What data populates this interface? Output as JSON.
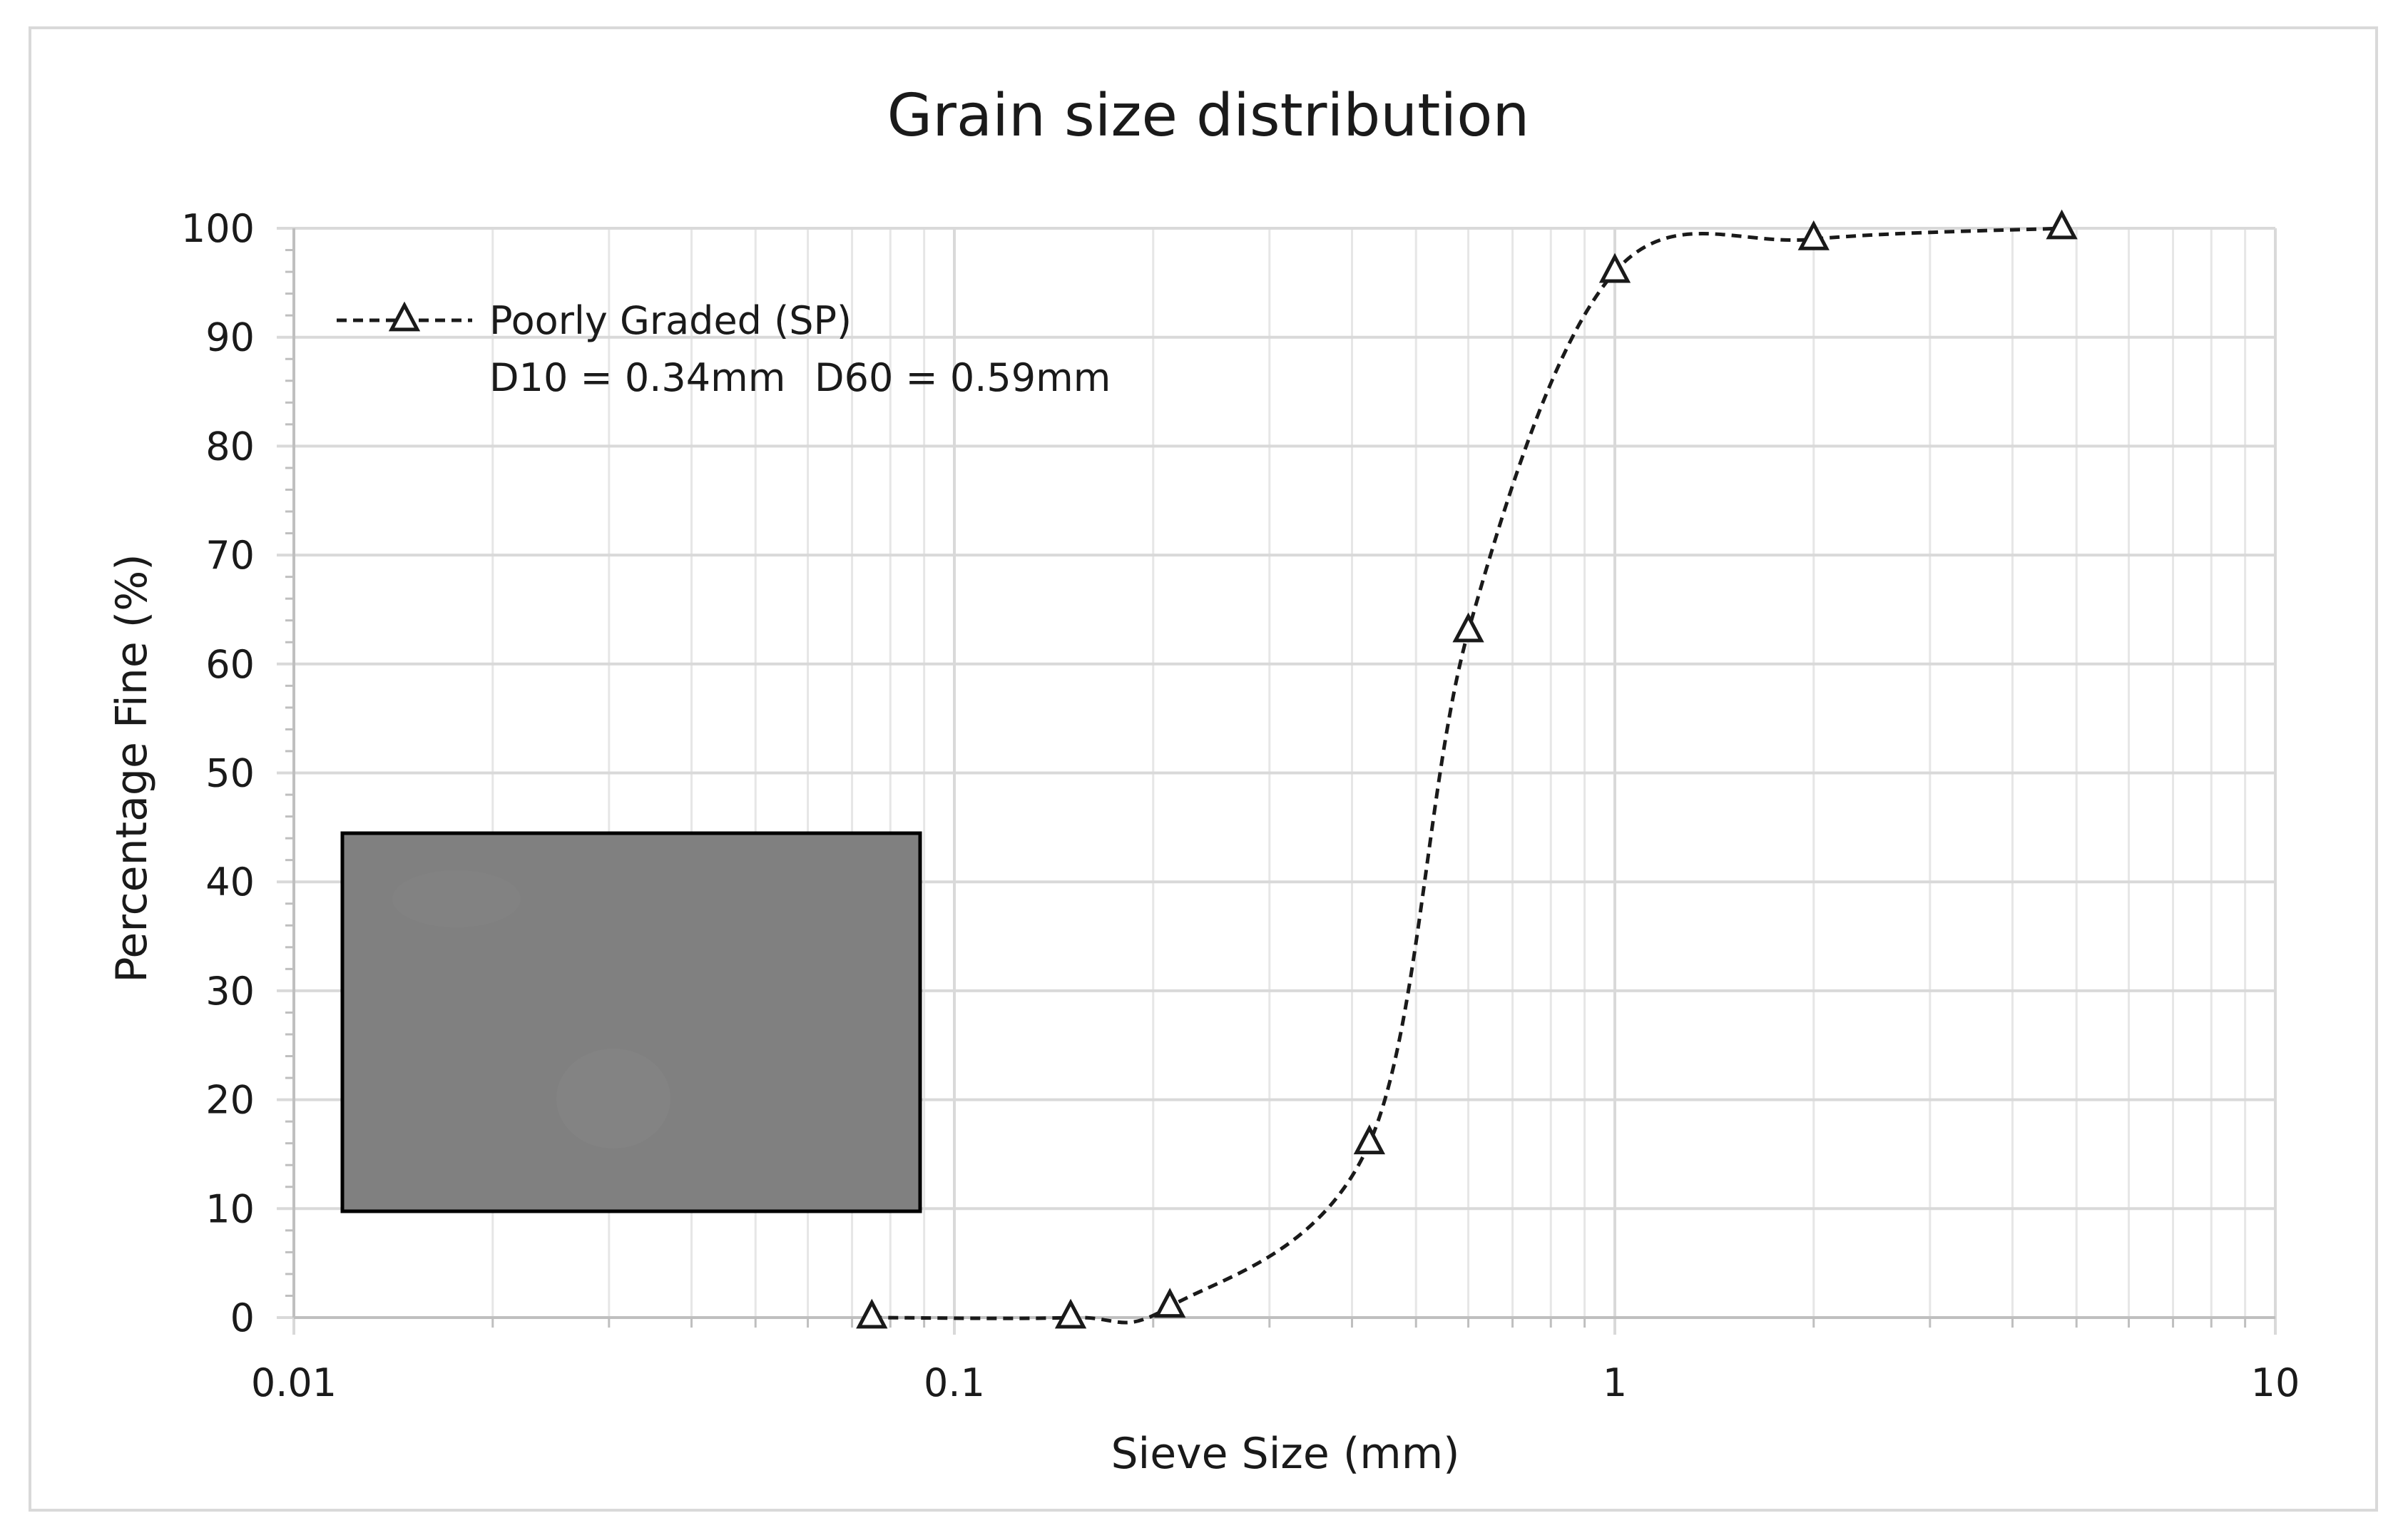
{
  "chart_data": {
    "type": "scatter",
    "title": "Grain size distribution",
    "xlabel": "Sieve Size (mm)",
    "ylabel": "Percentage Fine (%)",
    "x_scale": "log",
    "xlim": [
      0.01,
      10
    ],
    "ylim": [
      0,
      100
    ],
    "x_ticks": [
      "0.01",
      "0.1",
      "1",
      "10"
    ],
    "y_ticks": [
      "0",
      "10",
      "20",
      "30",
      "40",
      "50",
      "60",
      "70",
      "80",
      "90",
      "100"
    ],
    "grid": true,
    "legend_position": "top-left",
    "series": [
      {
        "name": "Poorly Graded (SP)",
        "marker": "triangle",
        "line": "dashed-smooth",
        "color": "#1a1a1a",
        "x": [
          0.075,
          0.15,
          0.212,
          0.425,
          0.6,
          1.0,
          2.0,
          4.75
        ],
        "y": [
          0,
          0,
          1,
          16,
          63,
          96,
          99,
          100
        ]
      }
    ],
    "annotations": [
      "D10 = 0.34mm",
      "D60 = 0.59mm"
    ],
    "inset_photo_color": "#808080"
  }
}
